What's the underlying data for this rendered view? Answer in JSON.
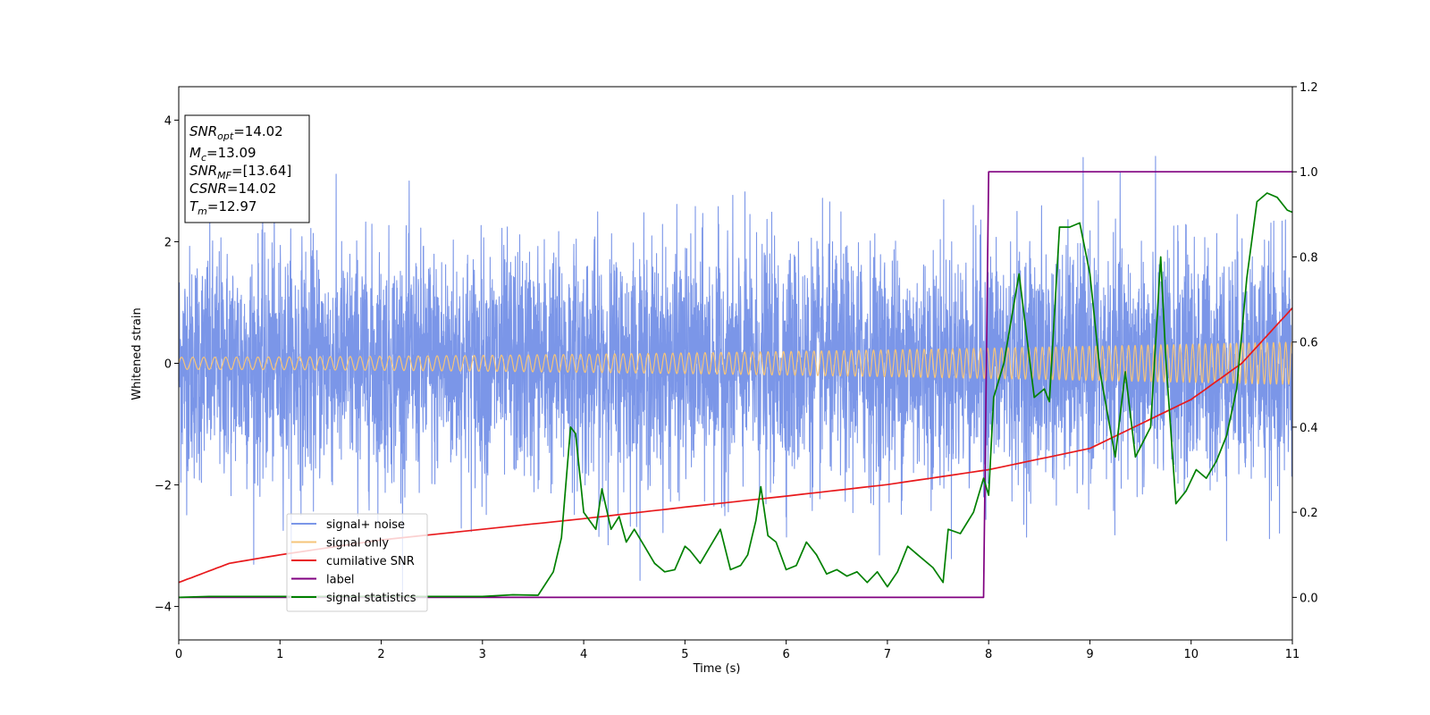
{
  "chart_data": {
    "type": "line",
    "xlabel": "Time (s)",
    "ylabel": "Whitened strain",
    "xlim": [
      0,
      11
    ],
    "ylim": [
      -4.55,
      4.55
    ],
    "y2lim": [
      -0.1,
      1.2
    ],
    "x_ticks": [
      "0",
      "1",
      "2",
      "3",
      "4",
      "5",
      "6",
      "7",
      "8",
      "9",
      "10",
      "11"
    ],
    "y_ticks": [
      "-4",
      "-2",
      "0",
      "2",
      "4"
    ],
    "y2_ticks": [
      "0.0",
      "0.2",
      "0.4",
      "0.6",
      "0.8",
      "1.0",
      "1.2"
    ],
    "grid": false,
    "legend_position": "lower-left",
    "info_box": {
      "lines": [
        {
          "name": "SNR",
          "sub": "opt",
          "value": "=14.02"
        },
        {
          "name": "M",
          "sub": "c",
          "value": "=13.09"
        },
        {
          "name": "SNR",
          "sub": "MF",
          "value": "=[13.64]"
        },
        {
          "name": "CSNR",
          "sub": "",
          "value": "=14.02"
        },
        {
          "name": "T",
          "sub": "m",
          "value": "=12.97"
        }
      ]
    },
    "series": [
      {
        "name": "signal+ noise",
        "color": "#7b96e8",
        "axis": "left",
        "kind": "noise",
        "std": 0.95,
        "approx_range": [
          -4.1,
          3.95
        ]
      },
      {
        "name": "signal only",
        "color": "#f5c47a",
        "axis": "left",
        "kind": "chirp",
        "amplitude_start": 0.1,
        "amplitude_end": 0.35
      },
      {
        "name": "cumilative SNR",
        "color": "#e8191c",
        "axis": "right",
        "x": [
          0,
          0.5,
          1,
          2,
          3,
          4,
          5,
          6,
          7,
          8,
          9,
          10,
          10.5,
          11
        ],
        "y": [
          0.035,
          0.08,
          0.1,
          0.135,
          0.16,
          0.185,
          0.212,
          0.238,
          0.265,
          0.3,
          0.35,
          0.465,
          0.55,
          0.68
        ]
      },
      {
        "name": "label",
        "color": "#800080",
        "axis": "right",
        "x": [
          0,
          7.95,
          8.0,
          11
        ],
        "y": [
          0.0,
          0.0,
          1.0,
          1.0
        ]
      },
      {
        "name": "signal statistics",
        "color": "#008000",
        "axis": "right",
        "x": [
          0,
          0.3,
          3.0,
          3.3,
          3.55,
          3.7,
          3.78,
          3.87,
          3.92,
          4.0,
          4.12,
          4.18,
          4.27,
          4.35,
          4.42,
          4.5,
          4.6,
          4.7,
          4.8,
          4.9,
          5.0,
          5.05,
          5.15,
          5.25,
          5.35,
          5.45,
          5.55,
          5.62,
          5.7,
          5.75,
          5.82,
          5.9,
          6.0,
          6.1,
          6.2,
          6.3,
          6.4,
          6.5,
          6.6,
          6.7,
          6.8,
          6.9,
          7.0,
          7.1,
          7.2,
          7.3,
          7.45,
          7.55,
          7.6,
          7.72,
          7.85,
          7.95,
          8.0,
          8.05,
          8.15,
          8.3,
          8.45,
          8.55,
          8.6,
          8.7,
          8.8,
          8.9,
          9.0,
          9.1,
          9.25,
          9.35,
          9.45,
          9.6,
          9.7,
          9.75,
          9.85,
          9.95,
          10.05,
          10.15,
          10.25,
          10.35,
          10.45,
          10.55,
          10.65,
          10.75,
          10.85,
          10.95,
          11
        ],
        "y": [
          0.0,
          0.002,
          0.002,
          0.006,
          0.005,
          0.06,
          0.14,
          0.4,
          0.385,
          0.2,
          0.16,
          0.255,
          0.16,
          0.19,
          0.13,
          0.16,
          0.12,
          0.08,
          0.06,
          0.065,
          0.12,
          0.11,
          0.08,
          0.12,
          0.16,
          0.065,
          0.075,
          0.1,
          0.18,
          0.26,
          0.145,
          0.13,
          0.065,
          0.075,
          0.13,
          0.1,
          0.055,
          0.065,
          0.05,
          0.06,
          0.035,
          0.06,
          0.025,
          0.06,
          0.12,
          0.1,
          0.07,
          0.035,
          0.16,
          0.15,
          0.2,
          0.28,
          0.24,
          0.47,
          0.55,
          0.76,
          0.47,
          0.49,
          0.46,
          0.87,
          0.87,
          0.88,
          0.76,
          0.53,
          0.33,
          0.53,
          0.33,
          0.4,
          0.8,
          0.56,
          0.22,
          0.25,
          0.3,
          0.28,
          0.32,
          0.38,
          0.49,
          0.75,
          0.93,
          0.95,
          0.94,
          0.91,
          0.905
        ]
      }
    ]
  }
}
